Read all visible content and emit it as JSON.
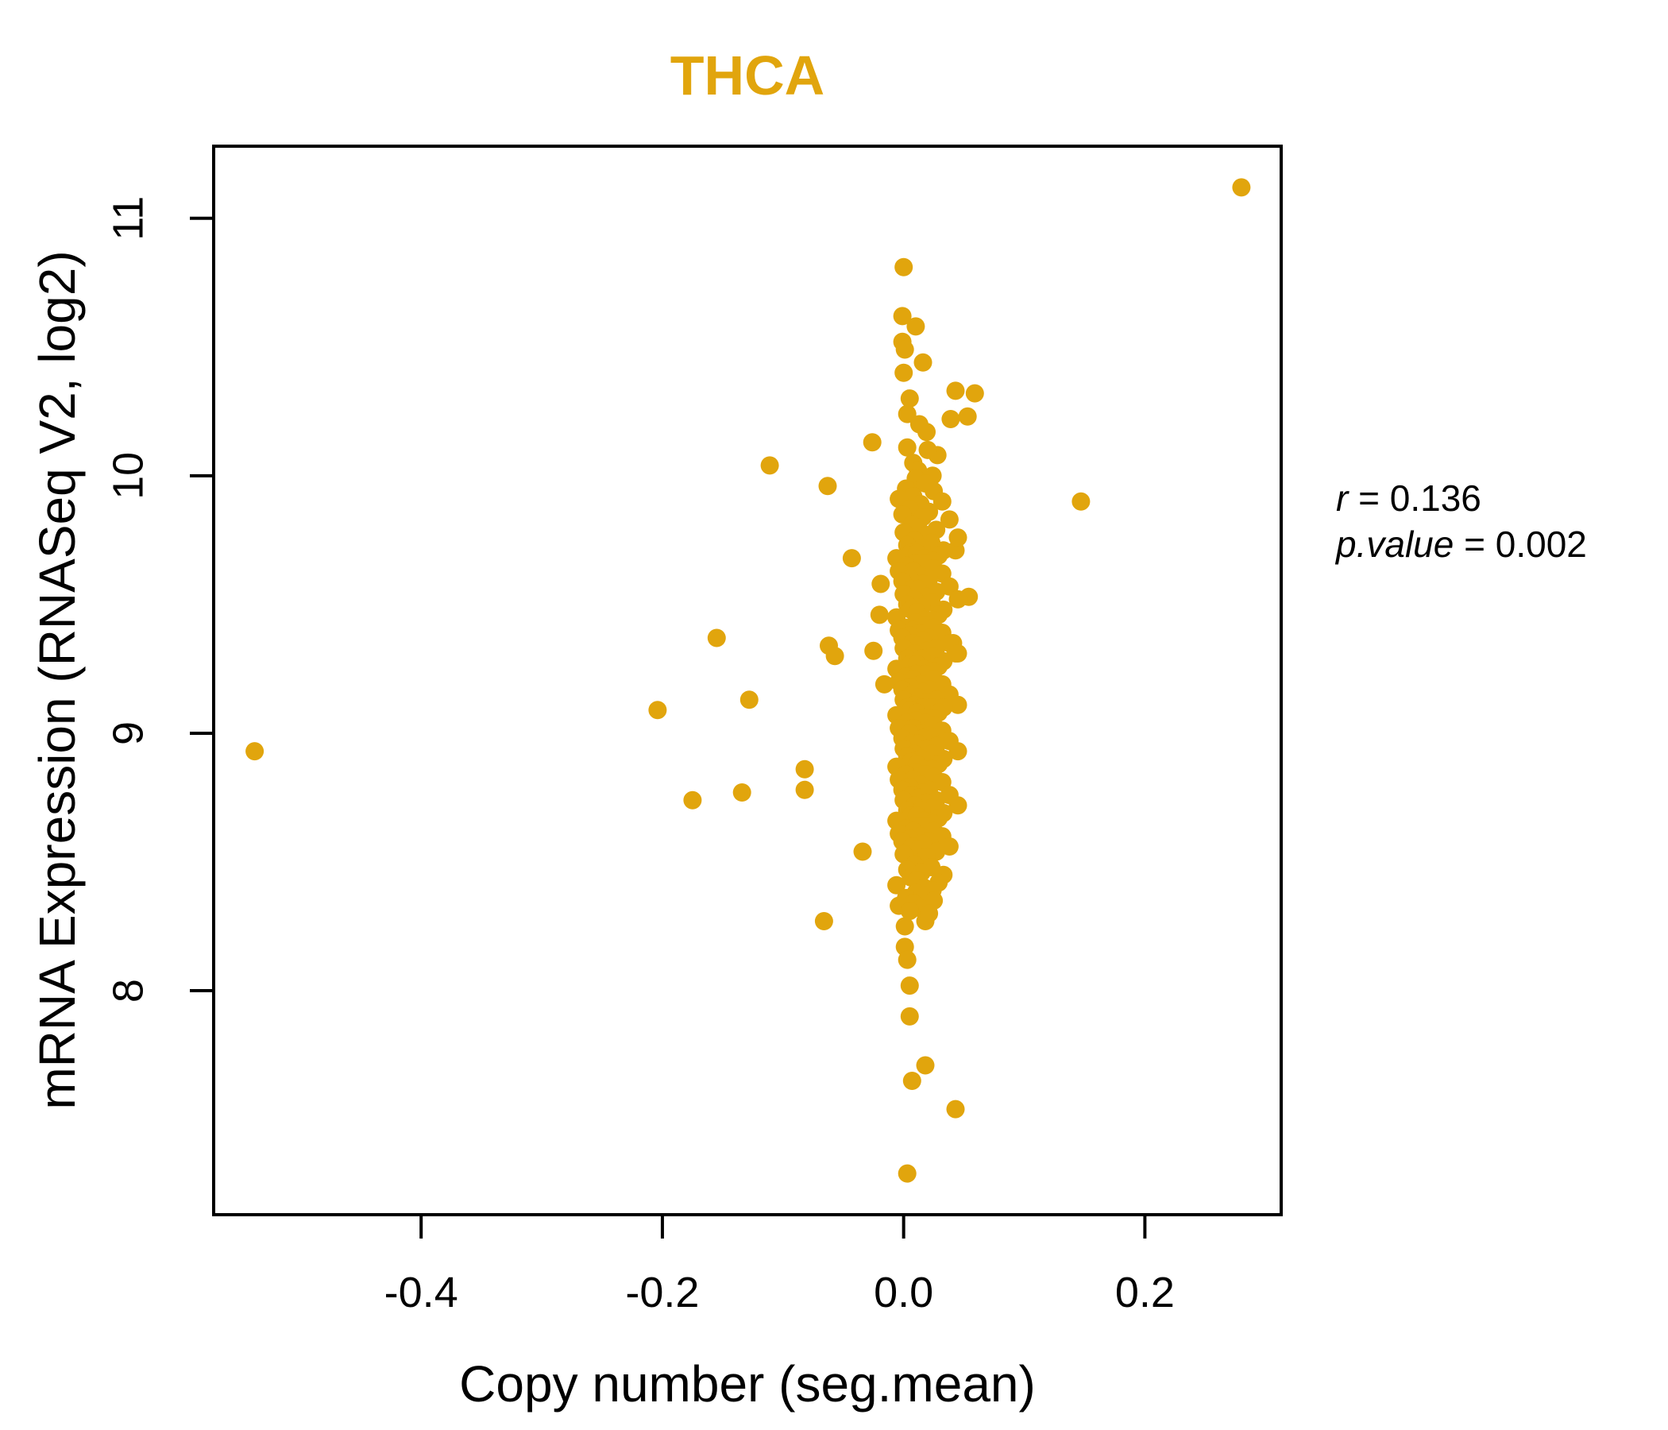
{
  "title": {
    "text": "THCA",
    "color": "#E1A50D"
  },
  "stats": {
    "r_name": "r",
    "r_rest": " = 0.136",
    "p_name": "p.value",
    "p_rest": " = 0.002"
  },
  "chart_data": {
    "type": "scatter",
    "title": "THCA",
    "xlabel": "Copy number (seg.mean)",
    "ylabel": "mRNA Expression (RNASeq V2, log2)",
    "xlim": [
      -0.572,
      0.313
    ],
    "ylim": [
      7.13,
      11.28
    ],
    "grid": false,
    "legend_position": "none",
    "xticks": [
      {
        "v": -0.4,
        "label": "-0.4"
      },
      {
        "v": -0.2,
        "label": "-0.2"
      },
      {
        "v": 0.0,
        "label": "0.0"
      },
      {
        "v": 0.2,
        "label": "0.2"
      }
    ],
    "yticks": [
      {
        "v": 8,
        "label": "8"
      },
      {
        "v": 9,
        "label": "9"
      },
      {
        "v": 10,
        "label": "10"
      },
      {
        "v": 11,
        "label": "11"
      }
    ],
    "point_color": "#E1A50D",
    "point_radius_px": 11.5,
    "correlation": {
      "r": 0.136,
      "p_value": 0.002
    },
    "points": [
      [
        -0.538,
        8.93
      ],
      [
        0.28,
        11.12
      ],
      [
        0.147,
        9.9
      ],
      [
        -0.204,
        9.09
      ],
      [
        -0.175,
        8.74
      ],
      [
        -0.155,
        9.37
      ],
      [
        -0.134,
        8.77
      ],
      [
        -0.128,
        9.13
      ],
      [
        -0.111,
        10.04
      ],
      [
        -0.082,
        8.86
      ],
      [
        -0.082,
        8.78
      ],
      [
        -0.066,
        8.27
      ],
      [
        -0.063,
        9.96
      ],
      [
        -0.062,
        9.34
      ],
      [
        -0.057,
        9.3
      ],
      [
        -0.043,
        9.68
      ],
      [
        -0.034,
        8.54
      ],
      [
        -0.026,
        10.13
      ],
      [
        0.0,
        10.81
      ],
      [
        -0.001,
        10.62
      ],
      [
        0.01,
        10.58
      ],
      [
        -0.001,
        10.52
      ],
      [
        0.001,
        10.49
      ],
      [
        0.016,
        10.44
      ],
      [
        0.0,
        10.4
      ],
      [
        0.043,
        10.33
      ],
      [
        0.059,
        10.32
      ],
      [
        0.005,
        10.3
      ],
      [
        0.039,
        10.22
      ],
      [
        0.053,
        10.23
      ],
      [
        0.003,
        10.24
      ],
      [
        0.019,
        10.17
      ],
      [
        0.003,
        10.11
      ],
      [
        0.028,
        10.08
      ],
      [
        0.008,
        10.05
      ],
      [
        0.013,
        10.2
      ],
      [
        0.02,
        10.1
      ],
      [
        0.012,
        10.02
      ],
      [
        0.024,
        10.0
      ],
      [
        0.01,
        9.97
      ],
      [
        0.006,
        9.9
      ],
      [
        0.043,
        9.71
      ],
      [
        0.054,
        9.53
      ],
      [
        0.041,
        9.35
      ],
      [
        0.043,
        9.31
      ],
      [
        -0.019,
        9.58
      ],
      [
        -0.02,
        9.46
      ],
      [
        -0.025,
        9.32
      ],
      [
        -0.016,
        9.19
      ],
      [
        0.001,
        8.25
      ],
      [
        0.018,
        8.27
      ],
      [
        0.001,
        8.17
      ],
      [
        0.003,
        8.12
      ],
      [
        0.005,
        8.02
      ],
      [
        0.005,
        7.9
      ],
      [
        0.018,
        7.71
      ],
      [
        0.007,
        7.65
      ],
      [
        0.043,
        7.54
      ],
      [
        0.003,
        7.29
      ],
      [
        0.01,
        9.99
      ],
      [
        0.018,
        9.97
      ],
      [
        0.002,
        9.95
      ],
      [
        0.025,
        9.94
      ],
      [
        0.008,
        9.92
      ],
      [
        -0.004,
        9.91
      ],
      [
        0.032,
        9.9
      ],
      [
        0.014,
        9.89
      ],
      [
        0.005,
        9.87
      ],
      [
        0.021,
        9.86
      ],
      [
        -0.001,
        9.85
      ],
      [
        0.016,
        9.84
      ],
      [
        0.038,
        9.83
      ],
      [
        0.007,
        9.81
      ],
      [
        0.012,
        9.8
      ],
      [
        0.027,
        9.79
      ],
      [
        0.0,
        9.78
      ],
      [
        0.019,
        9.77
      ],
      [
        0.045,
        9.76
      ],
      [
        0.009,
        9.75
      ],
      [
        0.023,
        9.74
      ],
      [
        0.003,
        9.73
      ],
      [
        0.015,
        9.72
      ],
      [
        0.033,
        9.71
      ],
      [
        0.006,
        9.7
      ],
      [
        0.011,
        9.7
      ],
      [
        0.029,
        9.69
      ],
      [
        -0.006,
        9.68
      ],
      [
        0.017,
        9.68
      ],
      [
        0.024,
        9.67
      ],
      [
        0.01,
        9.66
      ],
      [
        0.018,
        9.66
      ],
      [
        0.002,
        9.65
      ],
      [
        0.025,
        9.64
      ],
      [
        0.008,
        9.63
      ],
      [
        -0.004,
        9.63
      ],
      [
        0.032,
        9.62
      ],
      [
        0.014,
        9.61
      ],
      [
        0.005,
        9.6
      ],
      [
        0.021,
        9.6
      ],
      [
        -0.001,
        9.59
      ],
      [
        0.016,
        9.58
      ],
      [
        0.038,
        9.57
      ],
      [
        0.007,
        9.56
      ],
      [
        0.012,
        9.56
      ],
      [
        0.027,
        9.55
      ],
      [
        0.0,
        9.54
      ],
      [
        0.019,
        9.53
      ],
      [
        0.045,
        9.52
      ],
      [
        0.009,
        9.52
      ],
      [
        0.023,
        9.51
      ],
      [
        0.003,
        9.5
      ],
      [
        0.015,
        9.49
      ],
      [
        0.033,
        9.48
      ],
      [
        0.006,
        9.48
      ],
      [
        0.011,
        9.47
      ],
      [
        0.029,
        9.46
      ],
      [
        -0.006,
        9.45
      ],
      [
        0.017,
        9.44
      ],
      [
        0.024,
        9.44
      ],
      [
        0.01,
        9.43
      ],
      [
        0.018,
        9.42
      ],
      [
        0.002,
        9.41
      ],
      [
        0.025,
        9.41
      ],
      [
        0.008,
        9.4
      ],
      [
        -0.004,
        9.4
      ],
      [
        0.032,
        9.39
      ],
      [
        0.014,
        9.39
      ],
      [
        0.005,
        9.38
      ],
      [
        0.021,
        9.37
      ],
      [
        -0.001,
        9.37
      ],
      [
        0.016,
        9.36
      ],
      [
        0.038,
        9.35
      ],
      [
        0.007,
        9.35
      ],
      [
        0.012,
        9.34
      ],
      [
        0.027,
        9.33
      ],
      [
        0.0,
        9.33
      ],
      [
        0.019,
        9.32
      ],
      [
        0.045,
        9.31
      ],
      [
        0.009,
        9.31
      ],
      [
        0.023,
        9.3
      ],
      [
        0.003,
        9.29
      ],
      [
        0.015,
        9.29
      ],
      [
        0.033,
        9.28
      ],
      [
        0.006,
        9.27
      ],
      [
        0.011,
        9.27
      ],
      [
        0.029,
        9.26
      ],
      [
        -0.006,
        9.25
      ],
      [
        0.017,
        9.25
      ],
      [
        0.024,
        9.24
      ],
      [
        0.01,
        9.23
      ],
      [
        0.018,
        9.23
      ],
      [
        0.002,
        9.22
      ],
      [
        0.025,
        9.21
      ],
      [
        0.008,
        9.21
      ],
      [
        -0.004,
        9.2
      ],
      [
        0.032,
        9.19
      ],
      [
        0.014,
        9.19
      ],
      [
        0.005,
        9.18
      ],
      [
        0.021,
        9.17
      ],
      [
        -0.001,
        9.17
      ],
      [
        0.016,
        9.16
      ],
      [
        0.038,
        9.15
      ],
      [
        0.007,
        9.15
      ],
      [
        0.012,
        9.14
      ],
      [
        0.027,
        9.13
      ],
      [
        0.0,
        9.13
      ],
      [
        0.019,
        9.12
      ],
      [
        0.045,
        9.11
      ],
      [
        0.009,
        9.11
      ],
      [
        0.023,
        9.1
      ],
      [
        0.003,
        9.1
      ],
      [
        0.015,
        9.1
      ],
      [
        0.033,
        9.1
      ],
      [
        0.006,
        9.09
      ],
      [
        0.011,
        9.08
      ],
      [
        0.029,
        9.08
      ],
      [
        -0.006,
        9.07
      ],
      [
        0.017,
        9.06
      ],
      [
        0.024,
        9.06
      ],
      [
        0.01,
        9.05
      ],
      [
        0.018,
        9.04
      ],
      [
        0.002,
        9.04
      ],
      [
        0.025,
        9.03
      ],
      [
        0.008,
        9.02
      ],
      [
        -0.004,
        9.02
      ],
      [
        0.032,
        9.01
      ],
      [
        0.014,
        9.0
      ],
      [
        0.005,
        9.0
      ],
      [
        0.021,
        8.99
      ],
      [
        -0.001,
        8.98
      ],
      [
        0.016,
        8.98
      ],
      [
        0.038,
        8.97
      ],
      [
        0.007,
        8.96
      ],
      [
        0.012,
        8.96
      ],
      [
        0.027,
        8.95
      ],
      [
        0.0,
        8.94
      ],
      [
        0.019,
        8.94
      ],
      [
        0.045,
        8.93
      ],
      [
        0.009,
        8.92
      ],
      [
        0.023,
        8.92
      ],
      [
        0.003,
        8.91
      ],
      [
        0.015,
        8.9
      ],
      [
        0.033,
        8.9
      ],
      [
        0.006,
        8.89
      ],
      [
        0.011,
        8.88
      ],
      [
        0.029,
        8.88
      ],
      [
        -0.006,
        8.87
      ],
      [
        0.017,
        8.86
      ],
      [
        0.024,
        8.86
      ],
      [
        0.01,
        8.85
      ],
      [
        0.018,
        8.84
      ],
      [
        0.002,
        8.84
      ],
      [
        0.025,
        8.83
      ],
      [
        0.008,
        8.82
      ],
      [
        -0.004,
        8.82
      ],
      [
        0.032,
        8.81
      ],
      [
        0.014,
        8.8
      ],
      [
        0.005,
        8.79
      ],
      [
        0.021,
        8.78
      ],
      [
        -0.001,
        8.78
      ],
      [
        0.016,
        8.77
      ],
      [
        0.038,
        8.76
      ],
      [
        0.007,
        8.76
      ],
      [
        0.012,
        8.75
      ],
      [
        0.027,
        8.74
      ],
      [
        0.0,
        8.74
      ],
      [
        0.019,
        8.73
      ],
      [
        0.045,
        8.72
      ],
      [
        0.009,
        8.72
      ],
      [
        0.023,
        8.71
      ],
      [
        0.003,
        8.7
      ],
      [
        0.015,
        8.7
      ],
      [
        0.033,
        8.69
      ],
      [
        0.006,
        8.68
      ],
      [
        0.011,
        8.68
      ],
      [
        0.029,
        8.67
      ],
      [
        -0.006,
        8.66
      ],
      [
        0.017,
        8.66
      ],
      [
        0.024,
        8.65
      ],
      [
        0.01,
        8.64
      ],
      [
        0.018,
        8.64
      ],
      [
        0.002,
        8.63
      ],
      [
        0.025,
        8.62
      ],
      [
        0.008,
        8.62
      ],
      [
        -0.004,
        8.61
      ],
      [
        0.032,
        8.6
      ],
      [
        0.014,
        8.6
      ],
      [
        0.005,
        8.59
      ],
      [
        0.021,
        8.58
      ],
      [
        -0.001,
        8.58
      ],
      [
        0.016,
        8.57
      ],
      [
        0.038,
        8.56
      ],
      [
        0.007,
        8.56
      ],
      [
        0.012,
        8.55
      ],
      [
        0.027,
        8.54
      ],
      [
        0.0,
        8.53
      ],
      [
        0.019,
        8.52
      ],
      [
        0.009,
        8.49
      ],
      [
        0.023,
        8.48
      ],
      [
        0.003,
        8.47
      ],
      [
        0.015,
        8.46
      ],
      [
        0.033,
        8.45
      ],
      [
        0.006,
        8.44
      ],
      [
        0.011,
        8.43
      ],
      [
        0.029,
        8.42
      ],
      [
        -0.006,
        8.41
      ],
      [
        0.017,
        8.4
      ],
      [
        0.024,
        8.39
      ],
      [
        0.01,
        8.38
      ],
      [
        0.018,
        8.37
      ],
      [
        0.002,
        8.36
      ],
      [
        0.025,
        8.35
      ],
      [
        0.008,
        8.34
      ],
      [
        -0.004,
        8.33
      ],
      [
        0.014,
        8.32
      ],
      [
        0.005,
        8.31
      ],
      [
        0.021,
        8.3
      ]
    ]
  }
}
